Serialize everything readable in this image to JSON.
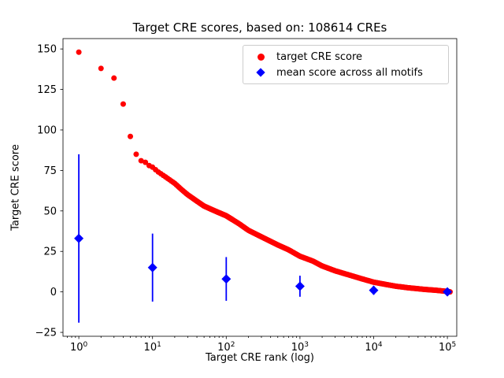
{
  "chart_data": {
    "type": "scatter",
    "title": "Target CRE scores, based on: 108614 CREs",
    "xlabel": "Target CRE rank (log)",
    "ylabel": "Target CRE score",
    "x_scale": "log",
    "xlim": [
      0.61,
      134000
    ],
    "ylim": [
      -27.4,
      156.4
    ],
    "x_ticks": [
      "10^0",
      "10^1",
      "10^2",
      "10^3",
      "10^4",
      "10^5"
    ],
    "x_tick_values": [
      1,
      10,
      100,
      1000,
      10000,
      100000
    ],
    "y_ticks": [
      150,
      125,
      100,
      75,
      50,
      25,
      0,
      -25
    ],
    "grid": false,
    "legend": {
      "position": "upper right",
      "entries": [
        {
          "label": "target CRE score",
          "marker": "circle",
          "color": "#ff0000"
        },
        {
          "label": "mean score across all motifs",
          "marker": "diamond",
          "color": "#0000ff"
        }
      ]
    },
    "series": [
      {
        "name": "target CRE score",
        "marker": "circle",
        "color": "#ff0000",
        "x": [
          1,
          2,
          3,
          4,
          5,
          6,
          7,
          8,
          9,
          10,
          12,
          15,
          20,
          25,
          30,
          40,
          50,
          70,
          100,
          150,
          200,
          300,
          500,
          700,
          1000,
          1500,
          2000,
          3000,
          5000,
          7000,
          10000,
          15000,
          20000,
          30000,
          50000,
          70000,
          100000,
          108614
        ],
        "y": [
          148,
          138,
          132,
          116,
          96,
          85,
          81,
          80,
          78,
          77,
          74,
          71,
          67,
          63,
          60,
          56,
          53,
          50,
          47,
          42,
          38,
          34,
          29,
          26,
          22,
          19,
          16,
          13,
          10,
          8,
          6,
          4.5,
          3.5,
          2.5,
          1.5,
          1,
          0.3,
          0
        ]
      },
      {
        "name": "mean score across all motifs",
        "marker": "diamond",
        "color": "#0000ff",
        "x": [
          1,
          10,
          100,
          1000,
          10000,
          100000
        ],
        "y": [
          33,
          15,
          8,
          3.5,
          1,
          0
        ],
        "yerr": [
          52,
          21,
          13.5,
          6.5,
          2.8,
          1
        ]
      }
    ]
  }
}
